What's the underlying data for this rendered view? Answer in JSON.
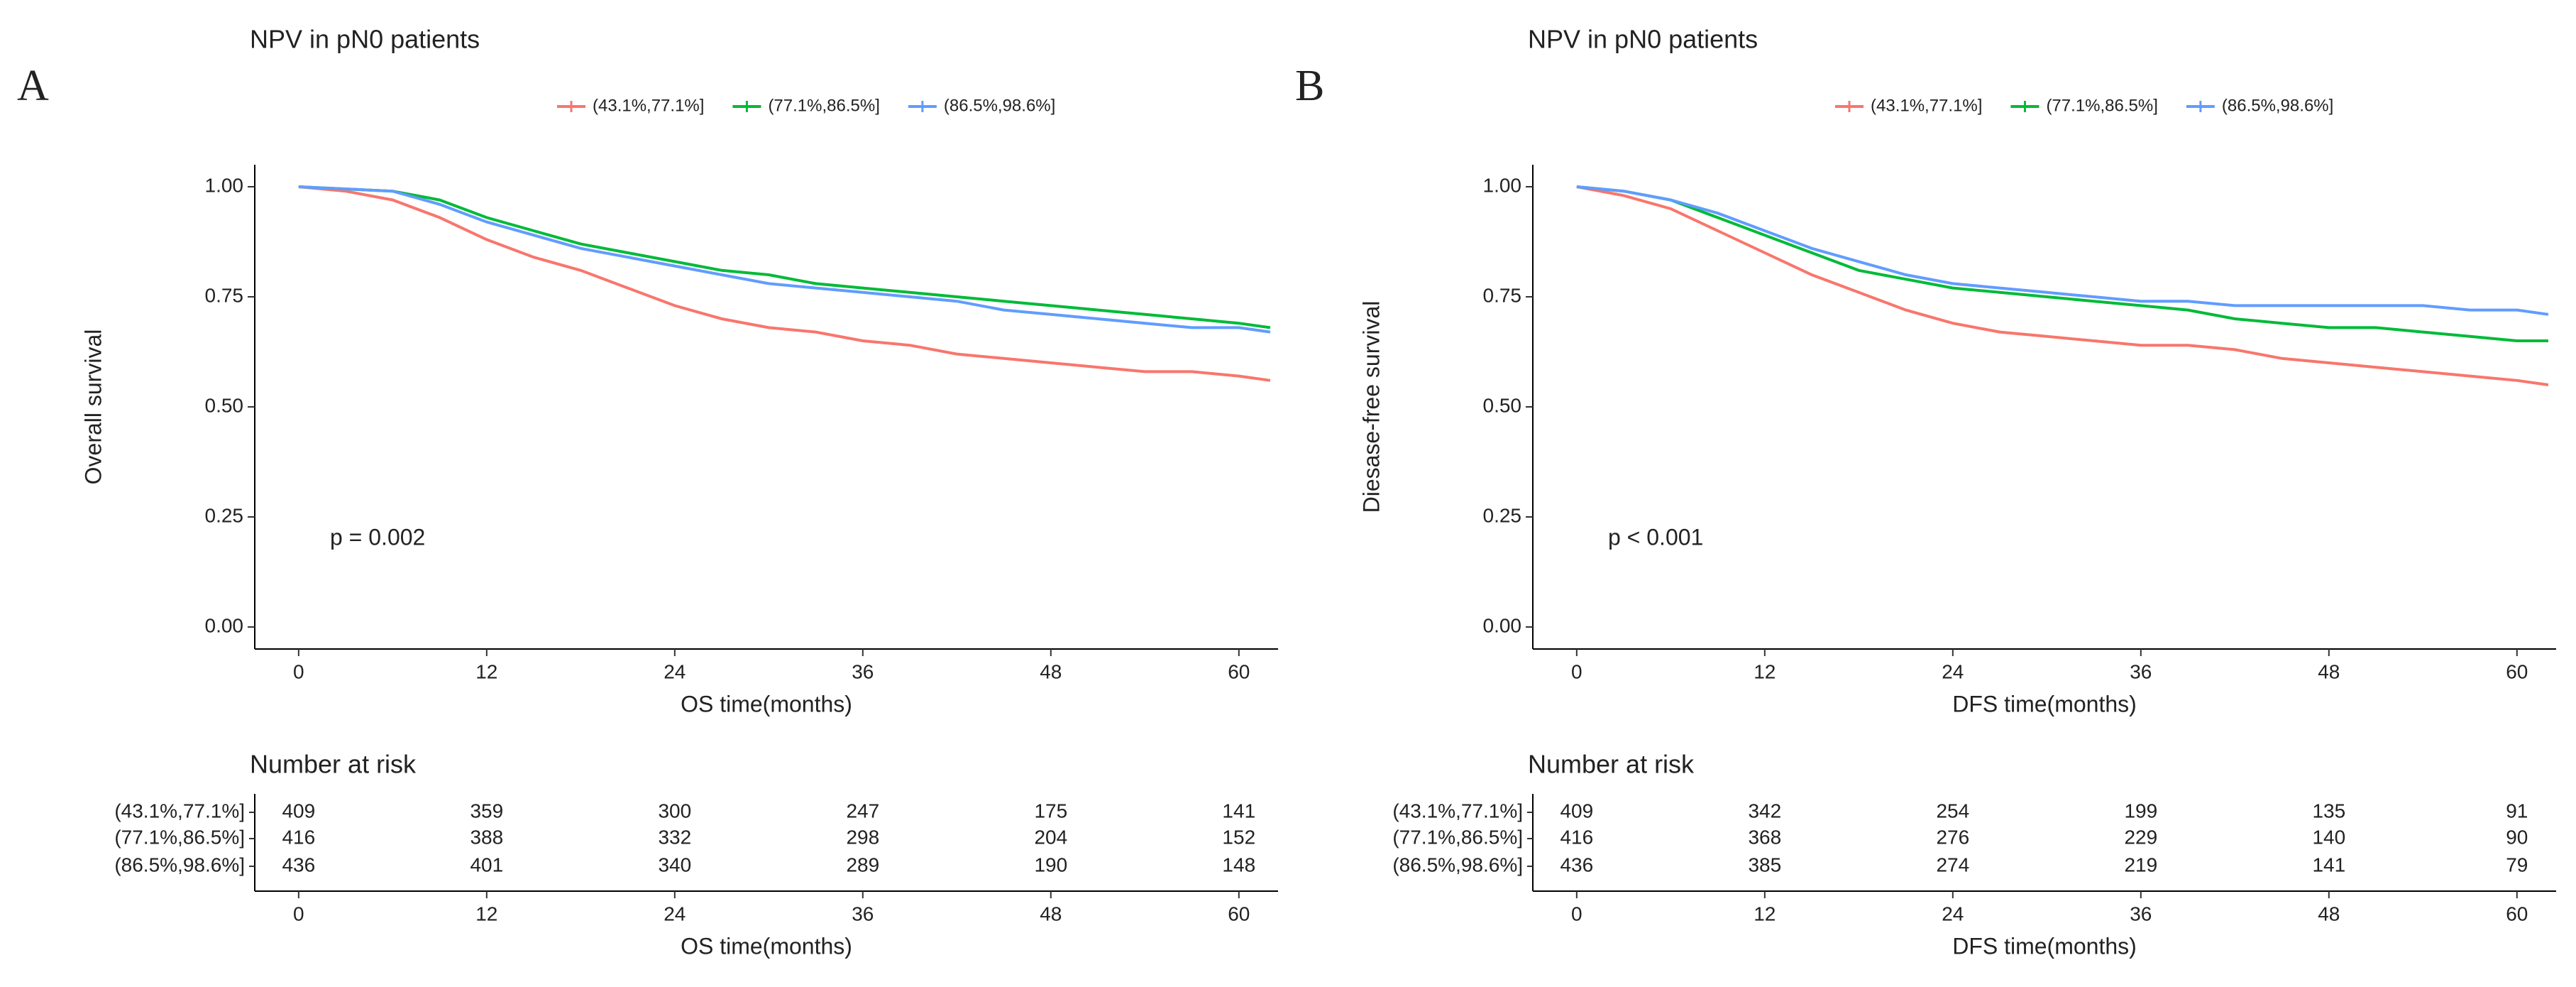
{
  "chart_data": [
    {
      "type": "line",
      "panel_label": "A",
      "title": "NPV in pN0 patients",
      "x_label": "OS time(months)",
      "y_label": "Overall survival",
      "annotation": "p = 0.002",
      "legend": "top",
      "x": [
        0,
        3,
        6,
        9,
        12,
        15,
        18,
        21,
        24,
        27,
        30,
        33,
        36,
        39,
        42,
        45,
        48,
        51,
        54,
        57,
        60,
        62
      ],
      "series": [
        {
          "name": "(43.1%,77.1%]",
          "color": "#F8766D",
          "values": [
            1,
            0.99,
            0.97,
            0.93,
            0.88,
            0.84,
            0.81,
            0.77,
            0.73,
            0.7,
            0.68,
            0.67,
            0.65,
            0.64,
            0.62,
            0.61,
            0.6,
            0.59,
            0.58,
            0.58,
            0.57,
            0.56
          ]
        },
        {
          "name": "(77.1%,86.5%]",
          "color": "#00BA38",
          "values": [
            1,
            0.995,
            0.99,
            0.97,
            0.93,
            0.9,
            0.87,
            0.85,
            0.83,
            0.81,
            0.8,
            0.78,
            0.77,
            0.76,
            0.75,
            0.74,
            0.73,
            0.72,
            0.71,
            0.7,
            0.69,
            0.68
          ]
        },
        {
          "name": "(86.5%,98.6%]",
          "color": "#619CFF",
          "values": [
            1,
            0.995,
            0.99,
            0.96,
            0.92,
            0.89,
            0.86,
            0.84,
            0.82,
            0.8,
            0.78,
            0.77,
            0.76,
            0.75,
            0.74,
            0.72,
            0.71,
            0.7,
            0.69,
            0.68,
            0.68,
            0.67
          ]
        }
      ],
      "xlim": [
        -2.8,
        62.5
      ],
      "ylim": [
        -0.05,
        1.05
      ],
      "xticks": [
        0,
        12,
        24,
        36,
        48,
        60
      ],
      "yticks": [
        {
          "value": 0,
          "label": "0.00"
        },
        {
          "value": 0.25,
          "label": "0.25"
        },
        {
          "value": 0.5,
          "label": "0.50"
        },
        {
          "value": 0.75,
          "label": "0.75"
        },
        {
          "value": 1,
          "label": "1.00"
        }
      ],
      "risk_table": {
        "title": "Number at risk",
        "counts": [
          [
            409,
            359,
            300,
            247,
            175,
            141
          ],
          [
            416,
            388,
            332,
            298,
            204,
            152
          ],
          [
            436,
            401,
            340,
            289,
            190,
            148
          ]
        ]
      }
    },
    {
      "type": "line",
      "panel_label": "B",
      "title": "NPV in pN0 patients",
      "x_label": "DFS time(months)",
      "y_label": "Diesase-free survival",
      "annotation": "p < 0.001",
      "legend": "top",
      "x": [
        0,
        3,
        6,
        9,
        12,
        15,
        18,
        21,
        24,
        27,
        30,
        33,
        36,
        39,
        42,
        45,
        48,
        51,
        54,
        57,
        60,
        62
      ],
      "series": [
        {
          "name": "(43.1%,77.1%]",
          "color": "#F8766D",
          "values": [
            1,
            0.98,
            0.95,
            0.9,
            0.85,
            0.8,
            0.76,
            0.72,
            0.69,
            0.67,
            0.66,
            0.65,
            0.64,
            0.64,
            0.63,
            0.61,
            0.6,
            0.59,
            0.58,
            0.57,
            0.56,
            0.55
          ]
        },
        {
          "name": "(77.1%,86.5%]",
          "color": "#00BA38",
          "values": [
            1,
            0.99,
            0.97,
            0.93,
            0.89,
            0.85,
            0.81,
            0.79,
            0.77,
            0.76,
            0.75,
            0.74,
            0.73,
            0.72,
            0.7,
            0.69,
            0.68,
            0.68,
            0.67,
            0.66,
            0.65,
            0.65
          ]
        },
        {
          "name": "(86.5%,98.6%]",
          "color": "#619CFF",
          "values": [
            1,
            0.99,
            0.97,
            0.94,
            0.9,
            0.86,
            0.83,
            0.8,
            0.78,
            0.77,
            0.76,
            0.75,
            0.74,
            0.74,
            0.73,
            0.73,
            0.73,
            0.73,
            0.73,
            0.72,
            0.72,
            0.71
          ]
        }
      ],
      "xlim": [
        -2.8,
        62.5
      ],
      "ylim": [
        -0.05,
        1.05
      ],
      "xticks": [
        0,
        12,
        24,
        36,
        48,
        60
      ],
      "yticks": [
        {
          "value": 0,
          "label": "0.00"
        },
        {
          "value": 0.25,
          "label": "0.25"
        },
        {
          "value": 0.5,
          "label": "0.50"
        },
        {
          "value": 0.75,
          "label": "0.75"
        },
        {
          "value": 1,
          "label": "1.00"
        }
      ],
      "risk_table": {
        "title": "Number at risk",
        "counts": [
          [
            409,
            342,
            254,
            199,
            135,
            91
          ],
          [
            416,
            368,
            276,
            229,
            140,
            90
          ],
          [
            436,
            385,
            274,
            219,
            141,
            79
          ]
        ]
      }
    }
  ]
}
